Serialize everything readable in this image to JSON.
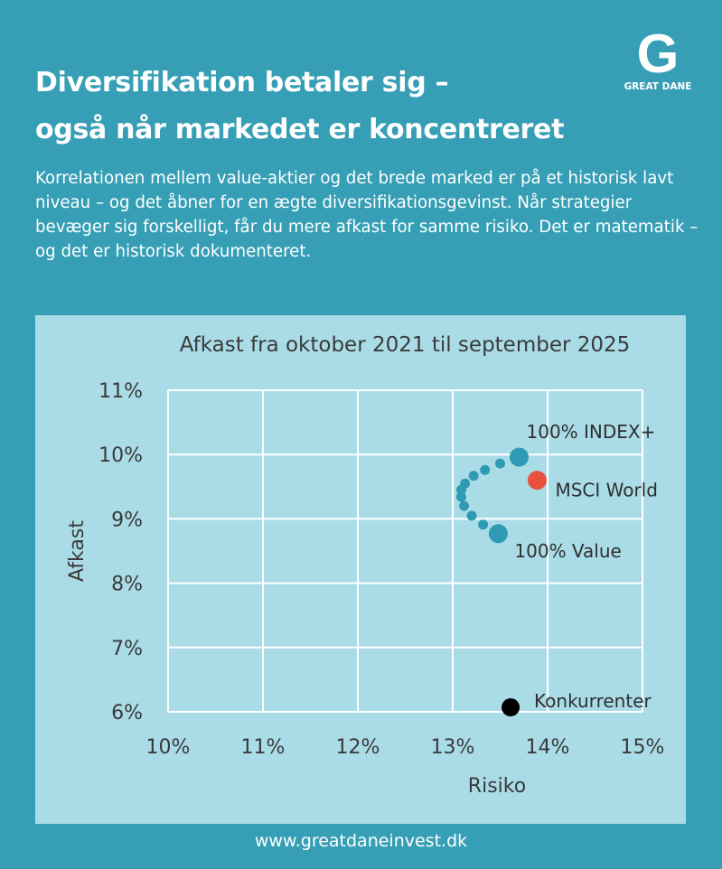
{
  "header": {
    "title_line1": "Diversifikation betaler sig –",
    "title_line2": "også når markedet er koncentreret",
    "logo_letter": "G",
    "logo_text": "GREAT DANE"
  },
  "intro": "Korrelationen mellem value-aktier og det brede marked er på et historisk lavt niveau – og det åbner for en ægte diversifikationsgevinst. Når strategier bevæger sig forskelligt, får du mere afkast for samme risiko. Det er matematik – og det er historisk dokumenteret.",
  "footer": "www.greatdaneinvest.dk",
  "chart_data": {
    "type": "scatter",
    "title": "Afkast fra oktober 2021 til september 2025",
    "xlabel": "Risiko",
    "ylabel": "Afkast",
    "xlim": [
      10,
      15
    ],
    "ylim": [
      6,
      11
    ],
    "xticks": [
      "10%",
      "11%",
      "12%",
      "13%",
      "14%",
      "15%"
    ],
    "yticks": [
      "6%",
      "7%",
      "8%",
      "9%",
      "10%",
      "11%"
    ],
    "grid": true,
    "colors": {
      "portfolio": "#2f9ab4",
      "msci": "#e9503d",
      "competitors": "#000000",
      "grid": "#ffffff"
    },
    "points": [
      {
        "label": "100% INDEX+",
        "x": 13.7,
        "y": 9.96,
        "kind": "portfolio",
        "size": "large"
      },
      {
        "label": "",
        "x": 13.5,
        "y": 9.86,
        "kind": "portfolio",
        "size": "small"
      },
      {
        "label": "",
        "x": 13.34,
        "y": 9.76,
        "kind": "portfolio",
        "size": "small"
      },
      {
        "label": "",
        "x": 13.22,
        "y": 9.67,
        "kind": "portfolio",
        "size": "small"
      },
      {
        "label": "",
        "x": 13.13,
        "y": 9.55,
        "kind": "portfolio",
        "size": "small"
      },
      {
        "label": "",
        "x": 13.09,
        "y": 9.45,
        "kind": "portfolio",
        "size": "small"
      },
      {
        "label": "",
        "x": 13.09,
        "y": 9.34,
        "kind": "portfolio",
        "size": "small"
      },
      {
        "label": "",
        "x": 13.12,
        "y": 9.2,
        "kind": "portfolio",
        "size": "small"
      },
      {
        "label": "",
        "x": 13.2,
        "y": 9.05,
        "kind": "portfolio",
        "size": "small"
      },
      {
        "label": "",
        "x": 13.32,
        "y": 8.91,
        "kind": "portfolio",
        "size": "small"
      },
      {
        "label": "100% Value",
        "x": 13.48,
        "y": 8.77,
        "kind": "portfolio",
        "size": "large"
      },
      {
        "label": "MSCI World",
        "x": 13.89,
        "y": 9.6,
        "kind": "msci",
        "size": "large"
      },
      {
        "label": "Konkurrenter",
        "x": 13.61,
        "y": 6.07,
        "kind": "competitors",
        "size": "medium"
      }
    ]
  }
}
